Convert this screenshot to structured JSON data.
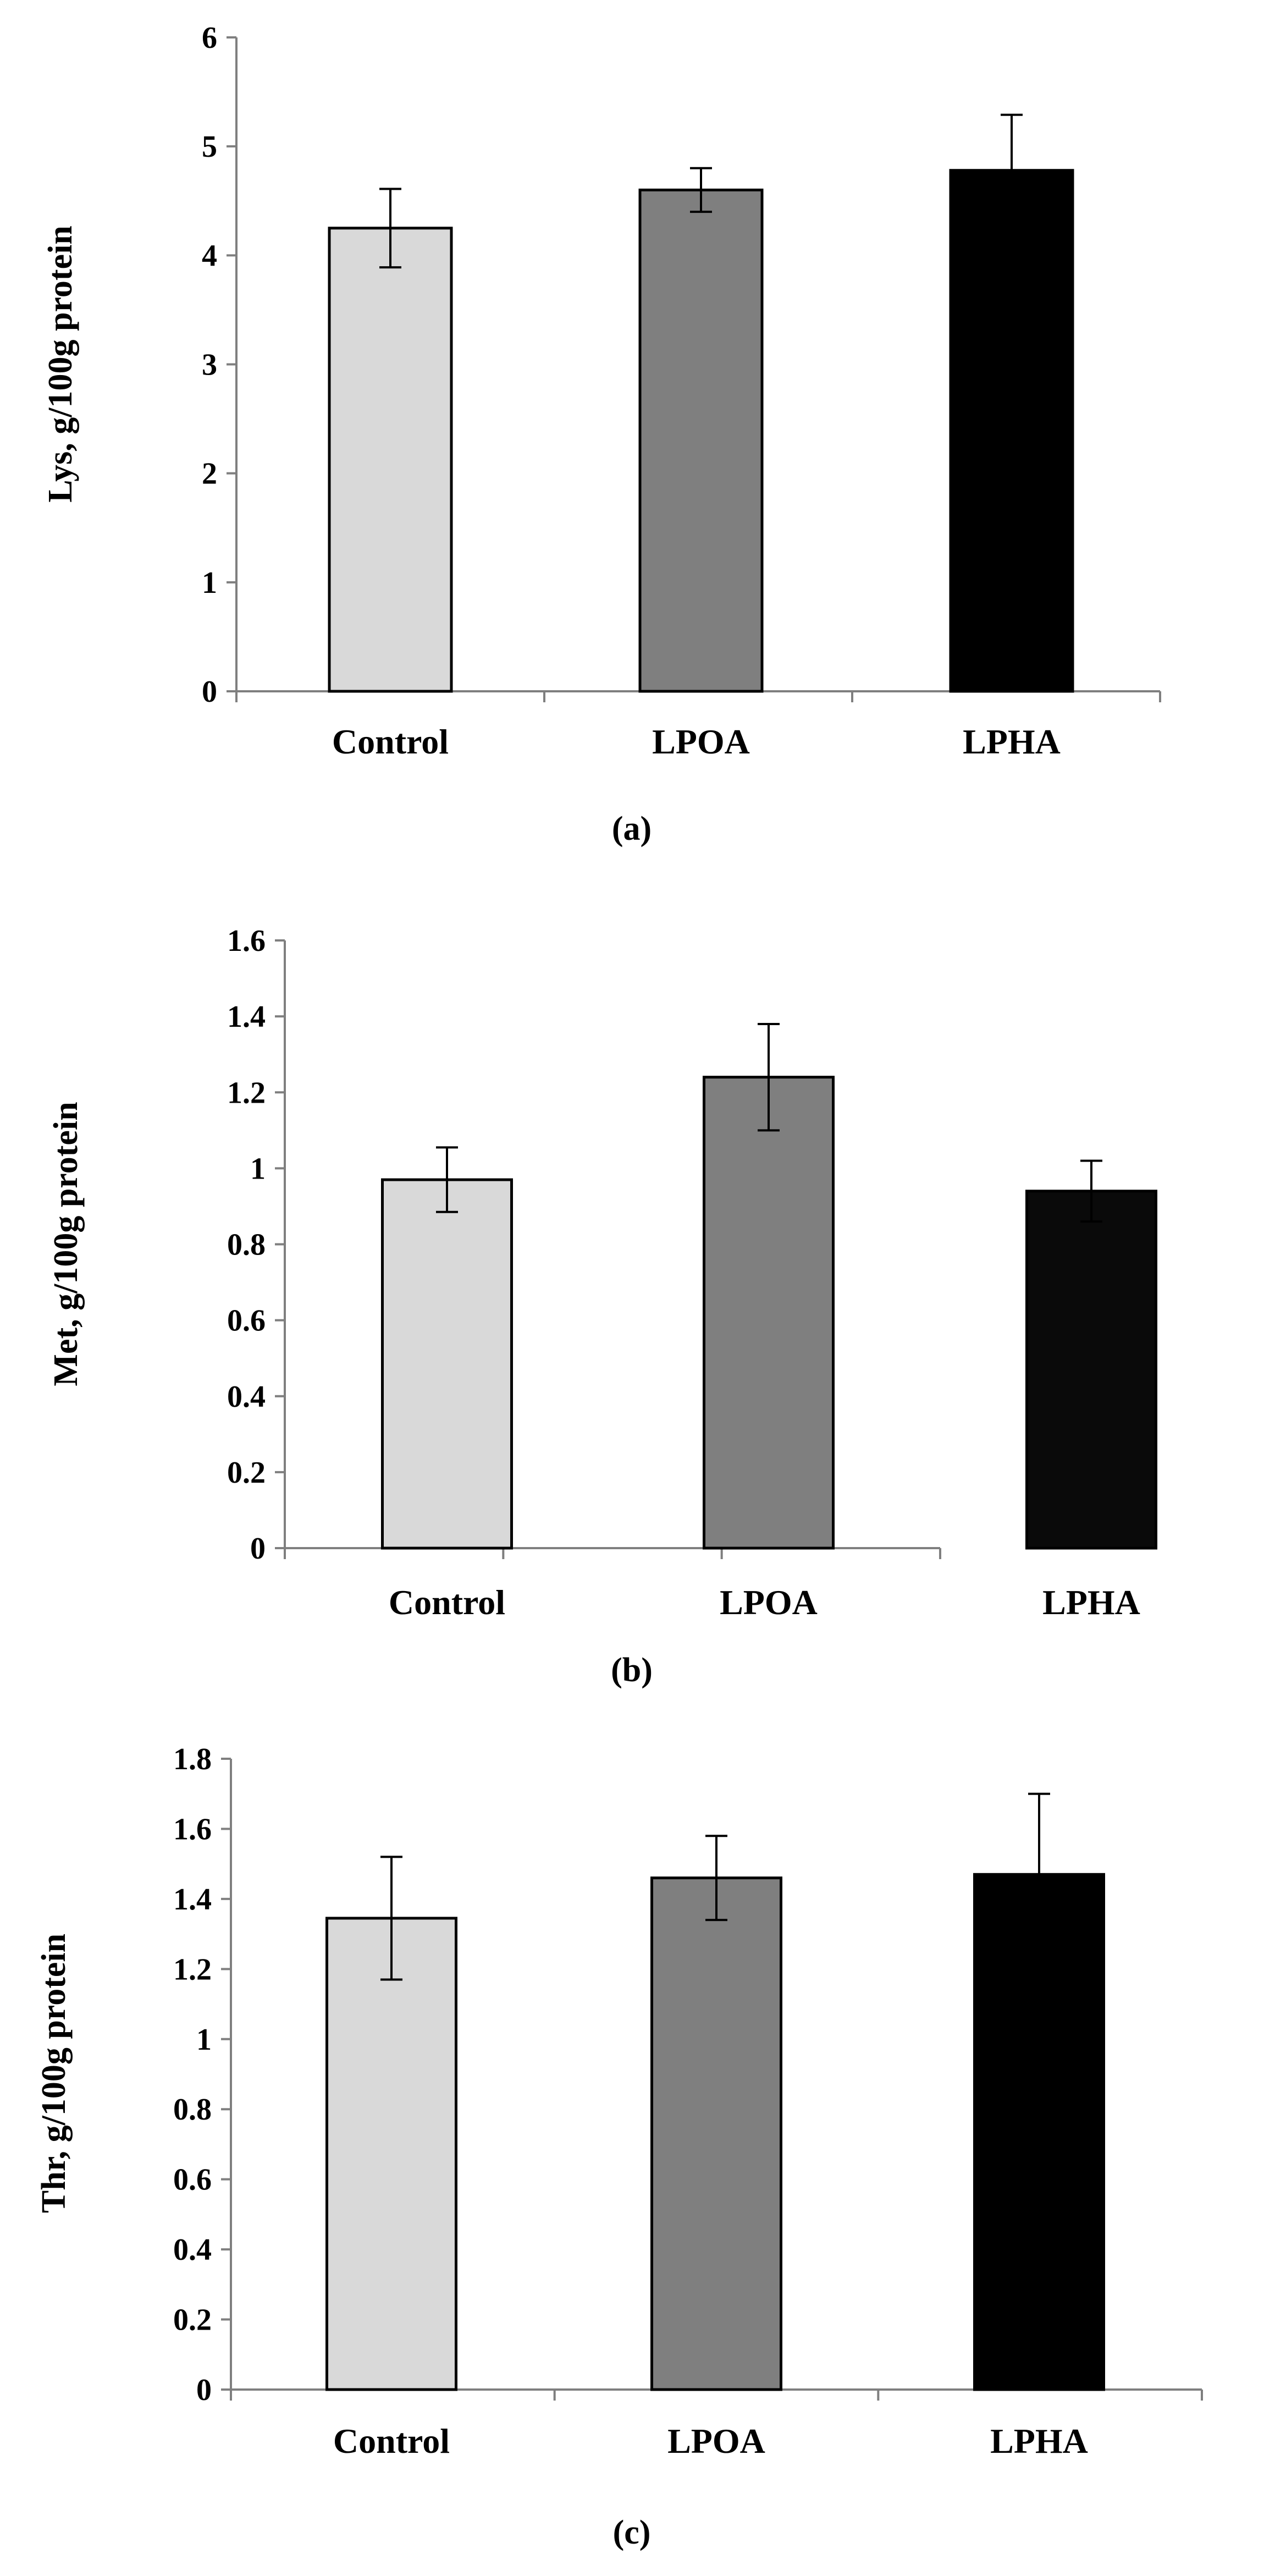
{
  "chart_data": [
    {
      "type": "bar",
      "panel_label": "(a)",
      "ylabel": "Lys, g/100g protein",
      "categories": [
        "Control",
        "LPOA",
        "LPHA"
      ],
      "values": [
        4.25,
        4.6,
        4.78
      ],
      "errors": [
        0.36,
        0.2,
        0.51
      ],
      "ylim": [
        0,
        6
      ],
      "yticks": [
        "0",
        "1",
        "2",
        "3",
        "4",
        "5",
        "6"
      ],
      "ytick_values": [
        0,
        1,
        2,
        3,
        4,
        5,
        6
      ],
      "colors": [
        "#d9d9d9",
        "#7f7f7f",
        "#000000"
      ],
      "grid": false,
      "legend": "none"
    },
    {
      "type": "bar",
      "panel_label": "(b)",
      "ylabel": "Met, g/100g protein",
      "categories": [
        "Control",
        "LPOA",
        "LPHA"
      ],
      "values": [
        0.97,
        1.24,
        0.94
      ],
      "errors": [
        0.085,
        0.14,
        0.08
      ],
      "ylim": [
        0,
        1.6
      ],
      "yticks": [
        "0",
        "0.2",
        "0.4",
        "0.6",
        "0.8",
        "1",
        "1.2",
        "1.4",
        "1.6"
      ],
      "ytick_values": [
        0,
        0.2,
        0.4,
        0.6,
        0.8,
        1,
        1.2,
        1.4,
        1.6
      ],
      "colors": [
        "#d9d9d9",
        "#7f7f7f",
        "#0a0a0a"
      ],
      "grid": false,
      "legend": "none"
    },
    {
      "type": "bar",
      "panel_label": "(c)",
      "ylabel": "Thr, g/100g protein",
      "categories": [
        "Control",
        "LPOA",
        "LPHA"
      ],
      "values": [
        1.345,
        1.46,
        1.47
      ],
      "errors": [
        0.175,
        0.12,
        0.23
      ],
      "ylim": [
        0,
        1.8
      ],
      "yticks": [
        "0",
        "0.2",
        "0.4",
        "0.6",
        "0.8",
        "1",
        "1.2",
        "1.4",
        "1.6",
        "1.8"
      ],
      "ytick_values": [
        0,
        0.2,
        0.4,
        0.6,
        0.8,
        1,
        1.2,
        1.4,
        1.6,
        1.8
      ],
      "colors": [
        "#d9d9d9",
        "#7f7f7f",
        "#000000"
      ],
      "grid": false,
      "legend": "none"
    }
  ]
}
